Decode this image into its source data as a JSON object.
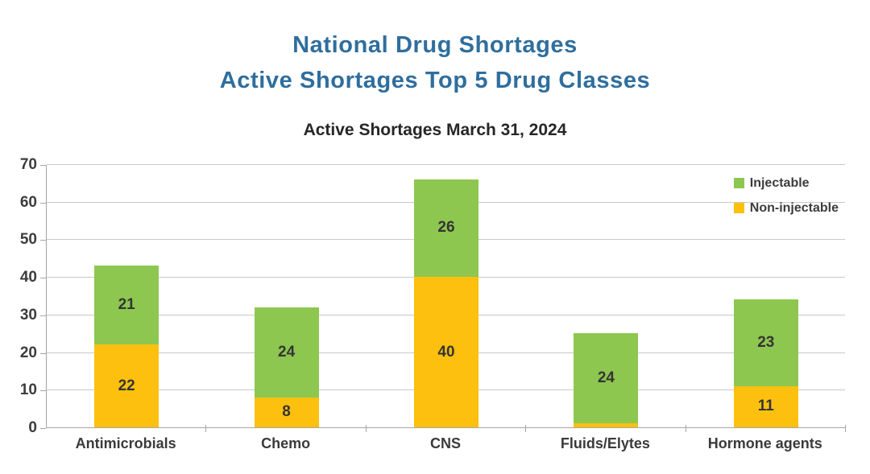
{
  "header": {
    "title_line1": "National Drug Shortages",
    "title_line2": "Active Shortages Top 5 Drug Classes"
  },
  "colors": {
    "title_blue": "#2F6E9E",
    "injectable_green": "#8DC74F",
    "non_injectable_orange": "#FEC00F",
    "gridline_gray": "#C9C9C9",
    "axis_gray": "#A6A6A6",
    "text_dark": "#3C3C3C"
  },
  "chart_data": {
    "type": "bar",
    "stacked": true,
    "title": "Active Shortages March 31, 2024",
    "categories": [
      "Antimicrobials",
      "Chemo",
      "CNS",
      "Fluids/Elytes",
      "Hormone agents"
    ],
    "series": [
      {
        "name": "Non-injectable",
        "color": "#FEC00F",
        "values": [
          22,
          8,
          40,
          1,
          11
        ]
      },
      {
        "name": "Injectable",
        "color": "#8DC74F",
        "values": [
          21,
          24,
          26,
          24,
          23
        ]
      }
    ],
    "totals": [
      43,
      32,
      66,
      25,
      34
    ],
    "xlabel": "",
    "ylabel": "",
    "ylim": [
      0,
      70
    ],
    "ytick_step": 10,
    "grid": "horizontal",
    "legend_position": "top-right",
    "legend_order": [
      "Injectable",
      "Non-injectable"
    ],
    "data_labels": "inside-center"
  }
}
